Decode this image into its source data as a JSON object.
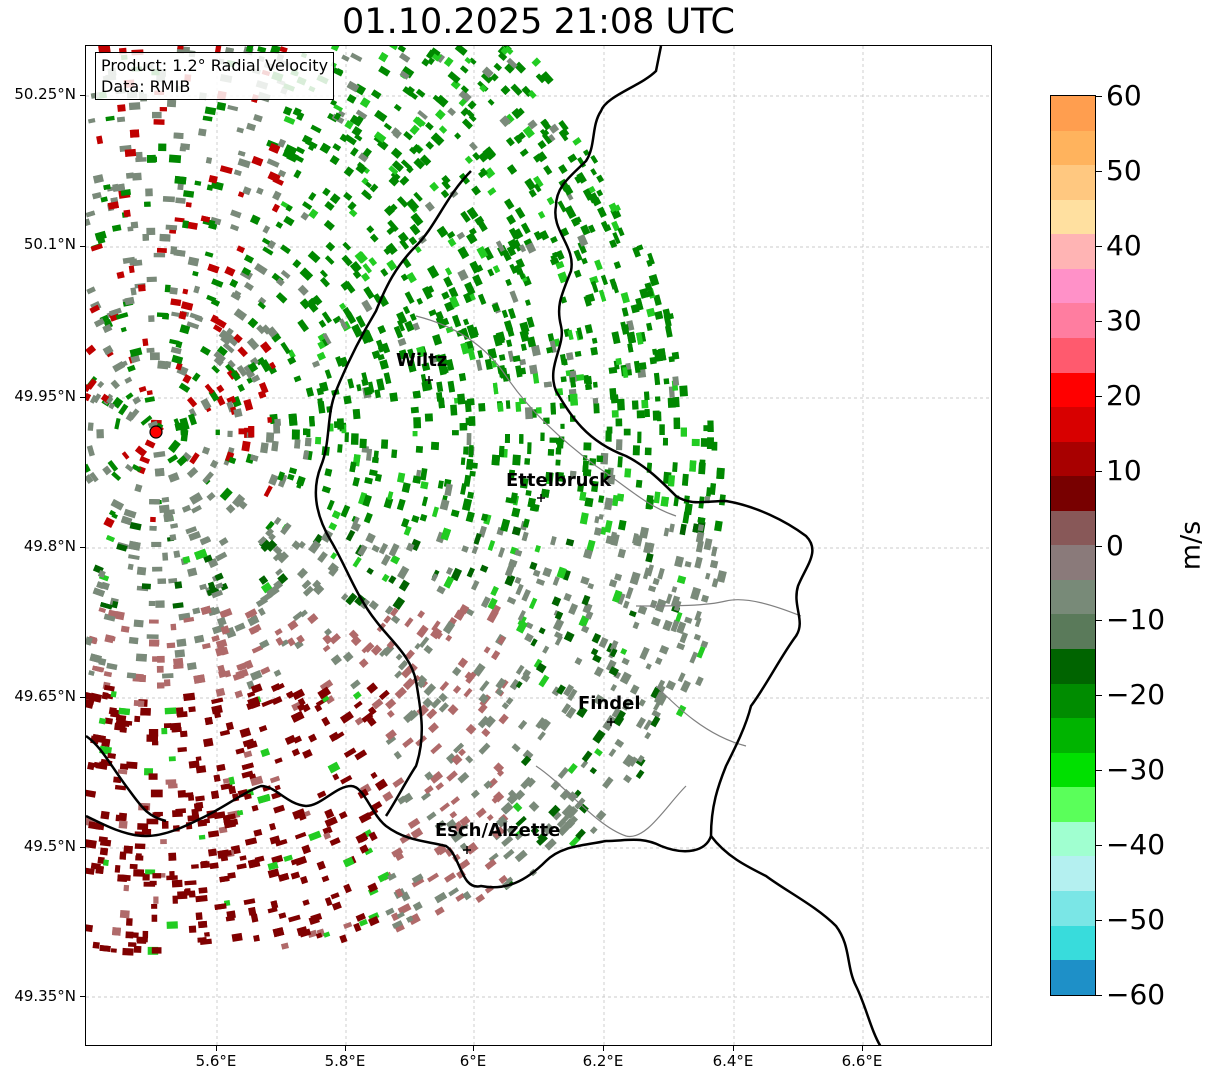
{
  "title": "01.10.2025 21:08 UTC",
  "info": {
    "product": "Product: 1.2° Radial Velocity",
    "data": "Data: RMIB"
  },
  "y_ticks": [
    "50.25°N",
    "50.1°N",
    "49.95°N",
    "49.8°N",
    "49.65°N",
    "49.5°N",
    "49.35°N"
  ],
  "x_ticks": [
    "5.6°E",
    "5.8°E",
    "6°E",
    "6.2°E",
    "6.4°E",
    "6.6°E"
  ],
  "cities": [
    {
      "name": "Wiltz"
    },
    {
      "name": "Ettelbruck"
    },
    {
      "name": "Findel"
    },
    {
      "name": "Esch/Alzette"
    }
  ],
  "colorbar": {
    "label": "m/s",
    "ticks": [
      "60",
      "50",
      "40",
      "30",
      "20",
      "10",
      "0",
      "−10",
      "−20",
      "−30",
      "−40",
      "−50",
      "−60"
    ],
    "colors": [
      "#ff9e4f",
      "#ffb35d",
      "#ffc880",
      "#ffe0a0",
      "#ffb4b4",
      "#ff91c8",
      "#ff7da0",
      "#ff5a6e",
      "#ff0000",
      "#d80000",
      "#a80000",
      "#780000",
      "#885858",
      "#8a7a7a",
      "#788a78",
      "#5a7a5a",
      "#006400",
      "#008c00",
      "#00b400",
      "#00e000",
      "#5aff5a",
      "#a0ffd0",
      "#b4f0f0",
      "#7ae6e6",
      "#38dcdc",
      "#1e90c8"
    ]
  },
  "radar_site": {
    "color": "#ff0000"
  },
  "palette": {
    "green": "#008800",
    "darkgreen": "#006400",
    "grey": "#7a8a7a",
    "red": "#800000",
    "lightgreen": "#22cc22",
    "pink": "#b06a6a",
    "border": "#000000",
    "admin": "#808080"
  }
}
